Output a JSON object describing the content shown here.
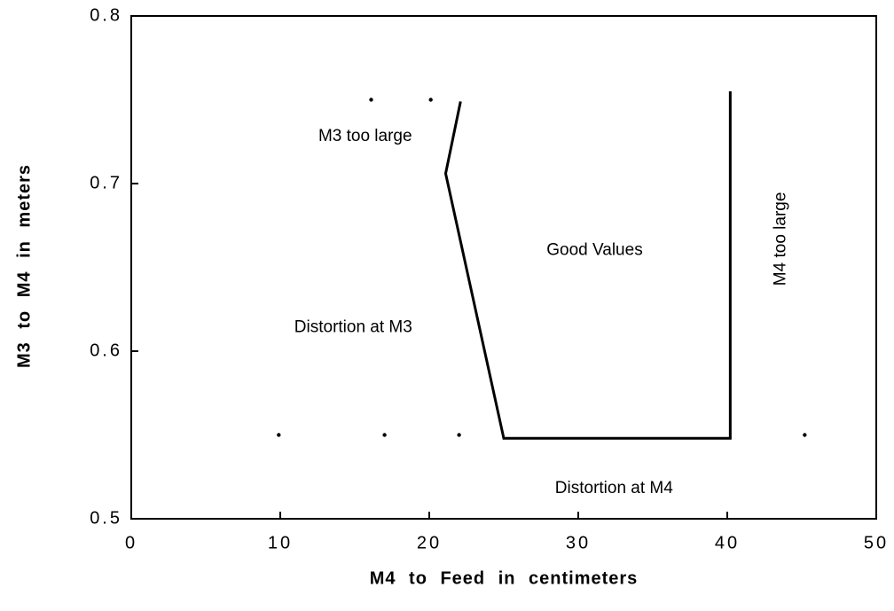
{
  "chart_data": {
    "type": "line",
    "xlabel": "M4 to Feed in centimeters",
    "ylabel": "M3 to M4 in meters",
    "xlim": [
      0,
      50
    ],
    "xticks": [
      0,
      10,
      20,
      30,
      40,
      50
    ],
    "ylim": [
      0.5,
      0.8
    ],
    "yticks": [
      0.5,
      0.6,
      0.7,
      0.8
    ],
    "series": [
      {
        "style": "line",
        "color": "#000000",
        "x": [
          22.1,
          21.1,
          25.0,
          40.2,
          40.2
        ],
        "values": [
          0.749,
          0.706,
          0.548,
          0.548,
          0.755
        ]
      },
      {
        "style": "dots",
        "color": "#000000",
        "x": [
          16.1,
          20.1,
          9.9,
          17.0,
          22.0,
          45.2
        ],
        "values": [
          0.75,
          0.75,
          0.55,
          0.55,
          0.55,
          0.55
        ]
      }
    ],
    "annotations": [
      {
        "text": "M3 too large",
        "x": 15.7,
        "y": 0.728,
        "rotation": 0
      },
      {
        "text": "Good Values",
        "x": 31.1,
        "y": 0.66,
        "rotation": 0
      },
      {
        "text": "Distortion at M3",
        "x": 14.9,
        "y": 0.614,
        "rotation": 0
      },
      {
        "text": "M4 too large",
        "x": 43.6,
        "y": 0.667,
        "rotation": -90
      },
      {
        "text": "Distortion at M4",
        "x": 32.4,
        "y": 0.518,
        "rotation": 0
      }
    ]
  }
}
